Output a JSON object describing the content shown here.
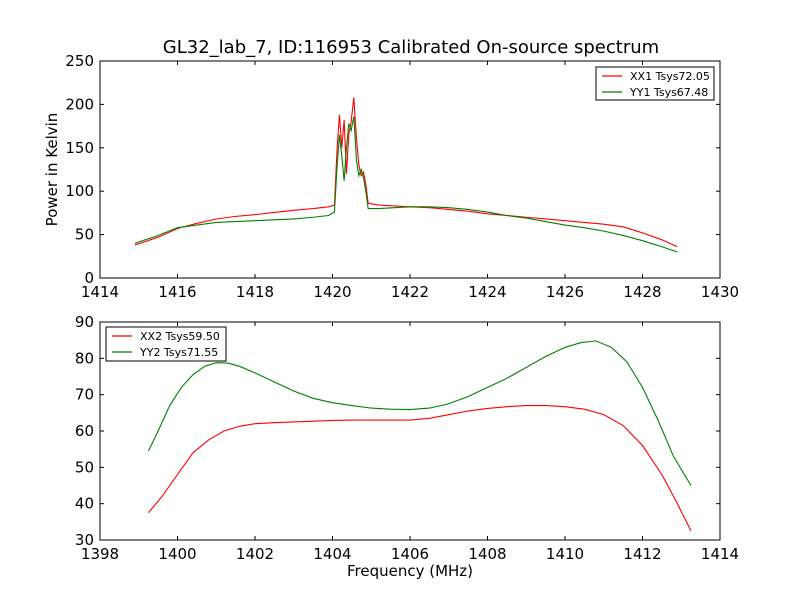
{
  "title": "GL32_lab_7, ID:116953 Calibrated On-source spectrum",
  "colors": {
    "red": "#ff0000",
    "green": "#008000"
  },
  "chart_data": [
    {
      "type": "line",
      "ylabel": "Power in Kelvin",
      "xlabel": "",
      "xlim": [
        1414,
        1430
      ],
      "ylim": [
        0,
        250
      ],
      "xticks": [
        "1414",
        "1416",
        "1418",
        "1420",
        "1422",
        "1424",
        "1426",
        "1428",
        "1430"
      ],
      "yticks": [
        "0",
        "50",
        "100",
        "150",
        "200",
        "250"
      ],
      "legend_position": "upper-right",
      "series": [
        {
          "name": "XX1 Tsys72.05",
          "color": "#ff0000",
          "points": [
            [
              1414.9,
              38
            ],
            [
              1415.5,
              47
            ],
            [
              1416,
              57
            ],
            [
              1416.5,
              63
            ],
            [
              1417,
              68
            ],
            [
              1417.5,
              71
            ],
            [
              1418,
              73
            ],
            [
              1418.5,
              75.5
            ],
            [
              1419,
              78
            ],
            [
              1419.5,
              80
            ],
            [
              1419.9,
              82
            ],
            [
              1420.05,
              84
            ],
            [
              1420.12,
              150
            ],
            [
              1420.18,
              188
            ],
            [
              1420.24,
              150
            ],
            [
              1420.3,
              182
            ],
            [
              1420.36,
              120
            ],
            [
              1420.42,
              165
            ],
            [
              1420.48,
              180
            ],
            [
              1420.55,
              208
            ],
            [
              1420.62,
              160
            ],
            [
              1420.68,
              130
            ],
            [
              1420.74,
              118
            ],
            [
              1420.8,
              122
            ],
            [
              1420.86,
              108
            ],
            [
              1420.92,
              86
            ],
            [
              1421.2,
              84
            ],
            [
              1421.6,
              83
            ],
            [
              1422,
              82
            ],
            [
              1422.5,
              81
            ],
            [
              1423,
              79
            ],
            [
              1423.5,
              77
            ],
            [
              1424,
              74
            ],
            [
              1424.5,
              72
            ],
            [
              1425,
              70
            ],
            [
              1425.5,
              68
            ],
            [
              1426,
              66
            ],
            [
              1426.5,
              64
            ],
            [
              1427,
              62
            ],
            [
              1427.5,
              59
            ],
            [
              1428,
              52
            ],
            [
              1428.5,
              44
            ],
            [
              1428.9,
              36
            ]
          ]
        },
        {
          "name": "YY1 Tsys67.48",
          "color": "#008000",
          "points": [
            [
              1414.9,
              40
            ],
            [
              1415.5,
              49
            ],
            [
              1416,
              58
            ],
            [
              1416.5,
              61
            ],
            [
              1417,
              64
            ],
            [
              1417.5,
              65
            ],
            [
              1418,
              66
            ],
            [
              1418.5,
              67
            ],
            [
              1419,
              68
            ],
            [
              1419.5,
              70
            ],
            [
              1419.9,
              72
            ],
            [
              1420.05,
              76
            ],
            [
              1420.12,
              130
            ],
            [
              1420.18,
              165
            ],
            [
              1420.24,
              140
            ],
            [
              1420.3,
              112
            ],
            [
              1420.36,
              150
            ],
            [
              1420.42,
              178
            ],
            [
              1420.48,
              170
            ],
            [
              1420.55,
              186
            ],
            [
              1420.62,
              135
            ],
            [
              1420.68,
              118
            ],
            [
              1420.74,
              125
            ],
            [
              1420.8,
              115
            ],
            [
              1420.86,
              100
            ],
            [
              1420.92,
              80
            ],
            [
              1421.2,
              80
            ],
            [
              1421.6,
              81
            ],
            [
              1422,
              82
            ],
            [
              1422.5,
              82
            ],
            [
              1423,
              81
            ],
            [
              1423.5,
              79
            ],
            [
              1424,
              76
            ],
            [
              1424.5,
              72
            ],
            [
              1425,
              69
            ],
            [
              1425.5,
              65
            ],
            [
              1426,
              61
            ],
            [
              1426.5,
              58
            ],
            [
              1427,
              54
            ],
            [
              1427.5,
              49
            ],
            [
              1428,
              43
            ],
            [
              1428.5,
              36
            ],
            [
              1428.9,
              30
            ]
          ]
        }
      ]
    },
    {
      "type": "line",
      "ylabel": "",
      "xlabel": "Frequency (MHz)",
      "xlim": [
        1398,
        1414
      ],
      "ylim": [
        30,
        90
      ],
      "xticks": [
        "1398",
        "1400",
        "1402",
        "1404",
        "1406",
        "1408",
        "1410",
        "1412",
        "1414"
      ],
      "yticks": [
        "30",
        "40",
        "50",
        "60",
        "70",
        "80",
        "90"
      ],
      "legend_position": "upper-left",
      "series": [
        {
          "name": "XX2 Tsys59.50",
          "color": "#ff0000",
          "points": [
            [
              1399.25,
              37.5
            ],
            [
              1399.6,
              42
            ],
            [
              1400,
              48
            ],
            [
              1400.4,
              54
            ],
            [
              1400.8,
              57.5
            ],
            [
              1401.2,
              60
            ],
            [
              1401.6,
              61.3
            ],
            [
              1402,
              62
            ],
            [
              1402.5,
              62.3
            ],
            [
              1403,
              62.5
            ],
            [
              1403.5,
              62.7
            ],
            [
              1404,
              62.9
            ],
            [
              1404.5,
              63
            ],
            [
              1405,
              63
            ],
            [
              1405.5,
              63
            ],
            [
              1406,
              63
            ],
            [
              1406.5,
              63.5
            ],
            [
              1407,
              64.5
            ],
            [
              1407.5,
              65.5
            ],
            [
              1408,
              66.2
            ],
            [
              1408.5,
              66.7
            ],
            [
              1409,
              67
            ],
            [
              1409.5,
              67
            ],
            [
              1410,
              66.7
            ],
            [
              1410.5,
              66
            ],
            [
              1411,
              64.5
            ],
            [
              1411.5,
              61.5
            ],
            [
              1412,
              56
            ],
            [
              1412.5,
              48
            ],
            [
              1412.9,
              40
            ],
            [
              1413.25,
              32.5
            ]
          ]
        },
        {
          "name": "YY2 Tsys71.55",
          "color": "#008000",
          "points": [
            [
              1399.25,
              54.5
            ],
            [
              1399.5,
              60
            ],
            [
              1399.8,
              67
            ],
            [
              1400.1,
              72
            ],
            [
              1400.4,
              75.5
            ],
            [
              1400.7,
              77.8
            ],
            [
              1401,
              78.8
            ],
            [
              1401.3,
              78.7
            ],
            [
              1401.6,
              77.8
            ],
            [
              1402,
              76
            ],
            [
              1402.5,
              73.5
            ],
            [
              1403,
              71
            ],
            [
              1403.5,
              69
            ],
            [
              1404,
              67.8
            ],
            [
              1404.5,
              67
            ],
            [
              1405,
              66.3
            ],
            [
              1405.5,
              66
            ],
            [
              1406,
              65.9
            ],
            [
              1406.5,
              66.3
            ],
            [
              1407,
              67.5
            ],
            [
              1407.5,
              69.5
            ],
            [
              1408,
              72
            ],
            [
              1408.5,
              74.5
            ],
            [
              1409,
              77.5
            ],
            [
              1409.5,
              80.5
            ],
            [
              1410,
              83
            ],
            [
              1410.4,
              84.3
            ],
            [
              1410.8,
              84.8
            ],
            [
              1411.2,
              83
            ],
            [
              1411.6,
              79
            ],
            [
              1412,
              72
            ],
            [
              1412.4,
              63
            ],
            [
              1412.8,
              53
            ],
            [
              1413.25,
              45
            ]
          ]
        }
      ]
    }
  ]
}
